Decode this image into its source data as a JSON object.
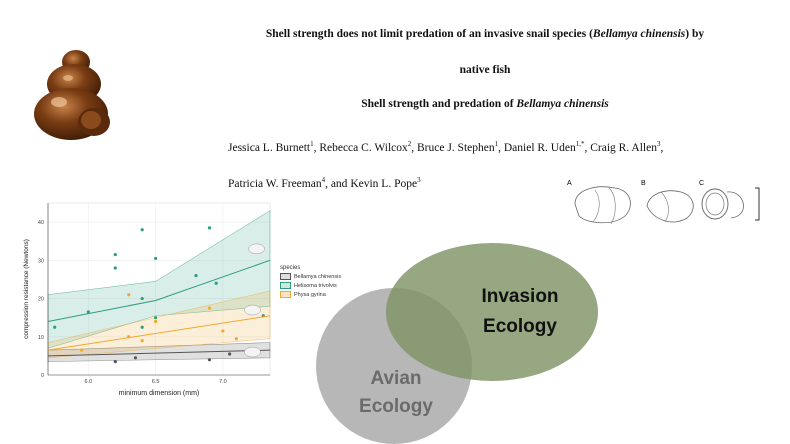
{
  "title": {
    "line1_pre": "Shell strength does not limit predation of an invasive snail species (",
    "line1_italic": "Bellamya chinensis",
    "line1_post": ") by",
    "line2": "native fish",
    "running_pre": "Shell strength and predation of ",
    "running_italic": "Bellamya chinensis"
  },
  "authors": {
    "line1": [
      {
        "name": "Jessica L. Burnett",
        "sup": "1",
        "sep": ", "
      },
      {
        "name": "Rebecca C. Wilcox",
        "sup": "2",
        "sep": ", "
      },
      {
        "name": "Bruce J. Stephen",
        "sup": "1",
        "sep": ", "
      },
      {
        "name": "Daniel R. Uden",
        "sup": "1,*",
        "sep": ", "
      },
      {
        "name": "Craig R. Allen",
        "sup": "3",
        "sep": ","
      }
    ],
    "line2": [
      {
        "name": "Patricia W. Freeman",
        "sup": "4",
        "sep": ", and "
      },
      {
        "name": "Kevin L. Pope",
        "sup": "3",
        "sep": ""
      }
    ]
  },
  "shell_labels": [
    "A",
    "B",
    "C"
  ],
  "venn": {
    "invasion": "Invasion Ecology",
    "invasion_line1": "Invasion",
    "invasion_line2": "Ecology",
    "avian_line1": "Avian",
    "avian_line2": "Ecology",
    "colors": {
      "invasion": "#7f9467",
      "avian": "#b3b3b3"
    }
  },
  "chart_data": {
    "type": "scatter",
    "xlabel": "minimum dimension (mm)",
    "ylabel": "compression resistance (Newtons)",
    "xlim": [
      5.7,
      7.35
    ],
    "ylim": [
      0,
      45
    ],
    "xticks": [
      6.0,
      6.5,
      7.0
    ],
    "xtick_labels": [
      "6.0",
      "6.5",
      "7.0"
    ],
    "yticks": [
      0,
      10,
      20,
      30,
      40
    ],
    "ytick_labels": [
      "0",
      "10",
      "20",
      "30",
      "40"
    ],
    "legend_title": "species",
    "legend_position": "right",
    "series": [
      {
        "name": "Bellamya chinensis",
        "color": "#555555",
        "points": [
          [
            6.2,
            3.5
          ],
          [
            6.35,
            4.5
          ],
          [
            6.9,
            4.0
          ],
          [
            7.05,
            5.5
          ]
        ],
        "fit": [
          [
            5.7,
            5.0
          ],
          [
            7.35,
            6.5
          ]
        ],
        "band_lower": [
          [
            5.7,
            3.5
          ],
          [
            7.35,
            4.5
          ]
        ],
        "band_upper": [
          [
            5.7,
            6.5
          ],
          [
            7.35,
            8.5
          ]
        ]
      },
      {
        "name": "Helisoma trivolvis",
        "color": "#2e9e7e",
        "points": [
          [
            5.75,
            12.5
          ],
          [
            6.0,
            16.5
          ],
          [
            6.2,
            28.0
          ],
          [
            6.2,
            31.5
          ],
          [
            6.4,
            38.0
          ],
          [
            6.4,
            20.0
          ],
          [
            6.5,
            30.5
          ],
          [
            6.4,
            12.5
          ],
          [
            6.5,
            15.0
          ],
          [
            6.8,
            26.0
          ],
          [
            6.9,
            38.5
          ],
          [
            6.95,
            24.0
          ],
          [
            7.3,
            15.5
          ]
        ],
        "fit": [
          [
            5.7,
            14.0
          ],
          [
            6.5,
            19.5
          ],
          [
            7.35,
            30.0
          ]
        ],
        "band_lower": [
          [
            5.7,
            7.0
          ],
          [
            6.5,
            15.5
          ],
          [
            7.35,
            18.0
          ]
        ],
        "band_upper": [
          [
            5.7,
            21.0
          ],
          [
            6.5,
            24.5
          ],
          [
            7.35,
            43.0
          ]
        ]
      },
      {
        "name": "Physa gyrina",
        "color": "#f0a830",
        "points": [
          [
            6.3,
            21.0
          ],
          [
            6.5,
            14.0
          ],
          [
            6.3,
            10.0
          ],
          [
            6.4,
            9.0
          ],
          [
            6.9,
            17.5
          ],
          [
            7.0,
            11.5
          ],
          [
            7.1,
            9.5
          ],
          [
            5.95,
            6.5
          ]
        ],
        "fit": [
          [
            5.7,
            6.5
          ],
          [
            7.35,
            15.5
          ]
        ],
        "band_lower": [
          [
            5.7,
            4.5
          ],
          [
            7.35,
            9.5
          ]
        ],
        "band_upper": [
          [
            5.7,
            8.5
          ],
          [
            7.35,
            22.0
          ]
        ]
      }
    ]
  }
}
